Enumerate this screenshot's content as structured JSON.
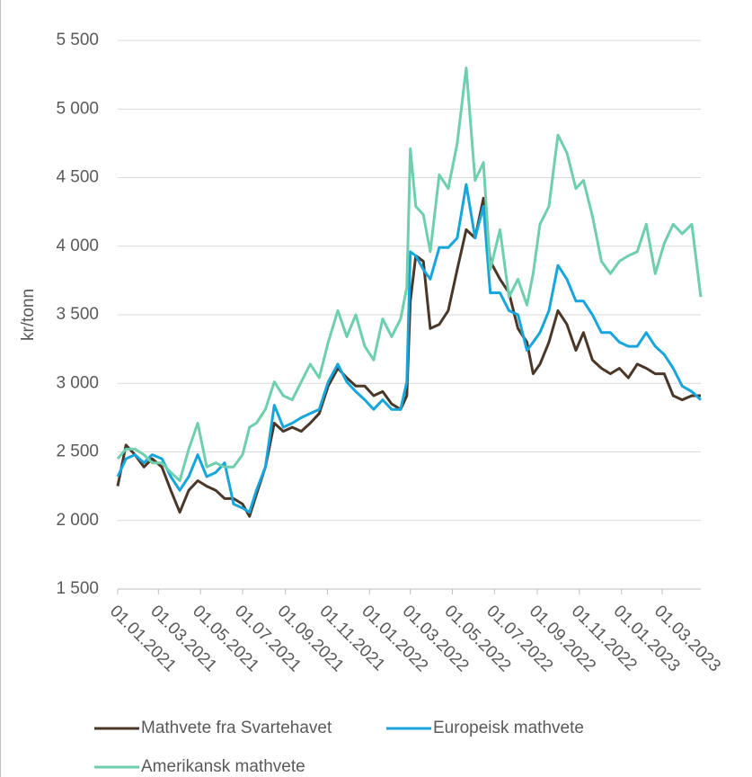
{
  "chart_data": {
    "type": "line",
    "y_label": "kr/tonn",
    "x": [
      "01.01.2021",
      "13.01.2021",
      "26.01.2021",
      "08.02.2021",
      "20.02.2021",
      "06.03.2021",
      "19.03.2021",
      "01.04.2021",
      "14.04.2021",
      "27.04.2021",
      "10.05.2021",
      "23.05.2021",
      "05.06.2021",
      "18.06.2021",
      "01.07.2021",
      "11.07.2021",
      "21.07.2021",
      "03.08.2021",
      "16.08.2021",
      "29.08.2021",
      "11.09.2021",
      "24.09.2021",
      "07.10.2021",
      "20.10.2021",
      "02.11.2021",
      "16.11.2021",
      "29.11.2021",
      "12.12.2021",
      "25.12.2021",
      "07.01.2022",
      "20.01.2022",
      "02.02.2022",
      "15.02.2022",
      "24.02.2022",
      "01.03.2022",
      "09.03.2022",
      "20.03.2022",
      "30.03.2022",
      "12.04.2022",
      "25.04.2022",
      "08.05.2022",
      "21.05.2022",
      "03.06.2022",
      "15.06.2022",
      "25.06.2022",
      "09.07.2022",
      "22.07.2022",
      "04.08.2022",
      "17.08.2022",
      "26.08.2022",
      "05.09.2022",
      "18.09.2022",
      "01.10.2022",
      "14.10.2022",
      "27.10.2022",
      "07.11.2022",
      "20.11.2022",
      "03.12.2022",
      "16.12.2022",
      "29.12.2022",
      "11.01.2023",
      "24.01.2023",
      "06.02.2023",
      "19.02.2023",
      "04.03.2023",
      "17.03.2023",
      "30.03.2023",
      "13.04.2023",
      "26.04.2023"
    ],
    "series": [
      {
        "name": "Mathvete fra Svartehavet",
        "color": "#4a3728",
        "values": [
          2250,
          2550,
          2480,
          2390,
          2450,
          2390,
          2220,
          2060,
          2220,
          2290,
          2250,
          2220,
          2160,
          2160,
          2120,
          2030,
          2190,
          2390,
          2710,
          2650,
          2680,
          2650,
          2710,
          2780,
          2980,
          3110,
          3040,
          2980,
          2980,
          2910,
          2940,
          2850,
          2810,
          2910,
          3600,
          3930,
          3890,
          3400,
          3430,
          3530,
          3830,
          4120,
          4060,
          4350,
          3890,
          3760,
          3660,
          3400,
          3300,
          3070,
          3140,
          3300,
          3530,
          3430,
          3240,
          3370,
          3170,
          3110,
          3070,
          3110,
          3040,
          3140,
          3110,
          3070,
          3070,
          2910,
          2880,
          2910,
          2910
        ]
      },
      {
        "name": "Europeisk mathvete",
        "color": "#16a6dc",
        "values": [
          2320,
          2450,
          2480,
          2420,
          2480,
          2450,
          2320,
          2220,
          2320,
          2480,
          2320,
          2350,
          2420,
          2120,
          2090,
          2060,
          2220,
          2390,
          2840,
          2680,
          2710,
          2750,
          2780,
          2810,
          3010,
          3140,
          3010,
          2940,
          2880,
          2810,
          2880,
          2810,
          2810,
          3010,
          3960,
          3930,
          3830,
          3760,
          3990,
          3990,
          4060,
          4450,
          4060,
          4290,
          3660,
          3660,
          3530,
          3500,
          3240,
          3300,
          3370,
          3530,
          3860,
          3760,
          3600,
          3600,
          3500,
          3370,
          3370,
          3300,
          3270,
          3270,
          3370,
          3270,
          3210,
          3110,
          2980,
          2940,
          2880
        ]
      },
      {
        "name": "Amerikansk mathvete",
        "color": "#6dcfae",
        "values": [
          2450,
          2520,
          2520,
          2480,
          2420,
          2420,
          2350,
          2290,
          2520,
          2710,
          2390,
          2420,
          2390,
          2390,
          2480,
          2680,
          2710,
          2810,
          3010,
          2910,
          2880,
          3010,
          3140,
          3040,
          3300,
          3530,
          3340,
          3500,
          3270,
          3170,
          3470,
          3340,
          3470,
          3700,
          4710,
          4290,
          4230,
          3960,
          4520,
          4420,
          4750,
          5300,
          4480,
          4610,
          3830,
          4120,
          3630,
          3760,
          3570,
          3800,
          4160,
          4290,
          4810,
          4680,
          4420,
          4480,
          4220,
          3890,
          3800,
          3890,
          3930,
          3960,
          4160,
          3800,
          4020,
          4160,
          4090,
          4160,
          3630
        ]
      }
    ],
    "xlim": [
      "01.01.2021",
      "26.04.2023"
    ],
    "xticks": [
      "01.01.2021",
      "01.03.2021",
      "01.05.2021",
      "01.07.2021",
      "01.09.2021",
      "01.11.2021",
      "01.01.2022",
      "01.03.2022",
      "01.05.2022",
      "01.07.2022",
      "01.09.2022",
      "01.11.2022",
      "01.01.2023",
      "01.03.2023"
    ],
    "ylim": [
      1500,
      5500
    ],
    "yticks": [
      {
        "value": 1500,
        "label": "1 500"
      },
      {
        "value": 2000,
        "label": "2 000"
      },
      {
        "value": 2500,
        "label": "2 500"
      },
      {
        "value": 3000,
        "label": "3 000"
      },
      {
        "value": 3500,
        "label": "3 500"
      },
      {
        "value": 4000,
        "label": "4 000"
      },
      {
        "value": 4500,
        "label": "4 500"
      },
      {
        "value": 5000,
        "label": "5 000"
      },
      {
        "value": 5500,
        "label": "5 500"
      }
    ],
    "grid": true,
    "legend": "bottom"
  }
}
